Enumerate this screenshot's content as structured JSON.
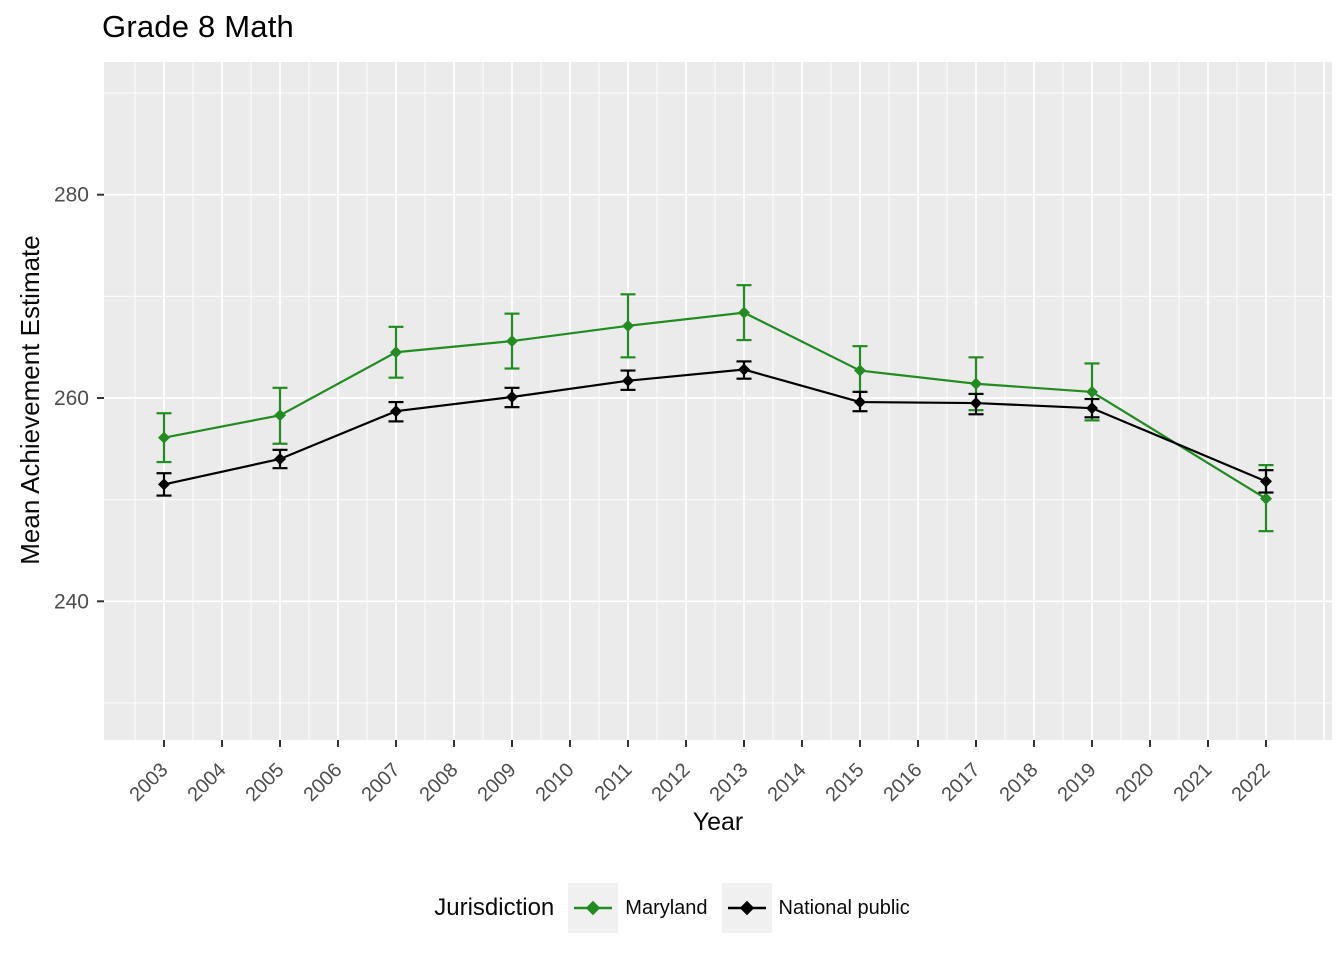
{
  "chart_data": {
    "type": "line",
    "title": "Grade 8 Math",
    "xlabel": "Year",
    "ylabel": "Mean Achievement Estimate",
    "legend_title": "Jurisdiction",
    "legend_position": "bottom",
    "grid": true,
    "panel_background": "#EBEBEB",
    "grid_color": "#FFFFFF",
    "axis_text_color": "#4D4D4D",
    "tick_mark_color": "#333333",
    "x_ticks": [
      2003,
      2004,
      2005,
      2006,
      2007,
      2008,
      2009,
      2010,
      2011,
      2012,
      2013,
      2014,
      2015,
      2016,
      2017,
      2018,
      2019,
      2020,
      2021,
      2022
    ],
    "y_ticks": [
      240,
      260,
      280
    ],
    "xlim": [
      2002.0,
      2023.2
    ],
    "ylim": [
      226.4,
      293.0
    ],
    "x": [
      2003,
      2005,
      2007,
      2009,
      2011,
      2013,
      2015,
      2017,
      2019,
      2022
    ],
    "series": [
      {
        "name": "Maryland",
        "color": "#228B22",
        "values": [
          256.1,
          258.3,
          264.5,
          265.6,
          267.1,
          268.4,
          262.7,
          261.4,
          260.6,
          250.1
        ],
        "ci_low": [
          253.7,
          255.5,
          262.0,
          262.9,
          264.0,
          265.7,
          260.6,
          258.8,
          257.8,
          246.9
        ],
        "ci_high": [
          258.5,
          261.0,
          267.0,
          268.3,
          270.2,
          271.1,
          265.1,
          264.0,
          263.4,
          253.4
        ]
      },
      {
        "name": "National public",
        "color": "#000000",
        "values": [
          251.5,
          254.0,
          258.7,
          260.1,
          261.7,
          262.8,
          259.6,
          259.5,
          259.0,
          251.8
        ],
        "ci_low": [
          250.4,
          253.1,
          257.7,
          259.1,
          260.8,
          261.9,
          258.7,
          258.4,
          258.1,
          250.7
        ],
        "ci_high": [
          252.6,
          254.9,
          259.6,
          261.0,
          262.7,
          263.6,
          260.6,
          260.4,
          259.9,
          252.9
        ]
      }
    ]
  }
}
